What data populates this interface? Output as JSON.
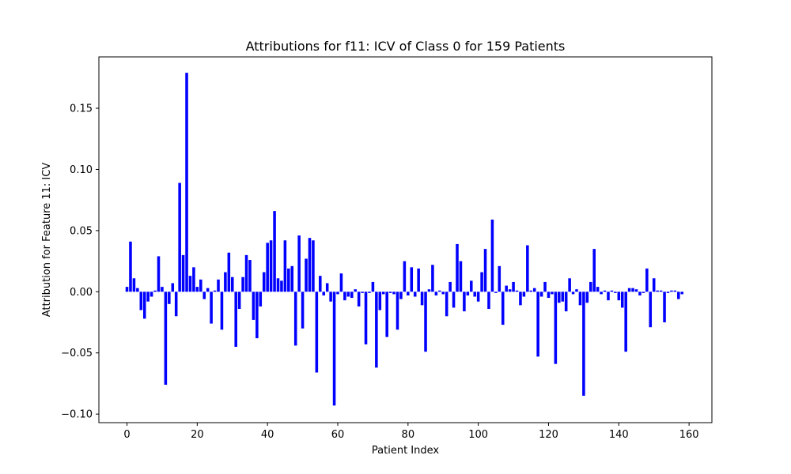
{
  "chart_data": {
    "type": "bar",
    "title": "Attributions for f11: ICV of Class 0 for 159 Patients",
    "xlabel": "Patient Index",
    "ylabel": "Attribution for Feature 11: ICV",
    "xlim": [
      -8,
      166.5
    ],
    "ylim": [
      -0.107,
      0.192
    ],
    "xticks": [
      0,
      20,
      40,
      60,
      80,
      100,
      120,
      140,
      160
    ],
    "xtick_labels": [
      "0",
      "20",
      "40",
      "60",
      "80",
      "100",
      "120",
      "140",
      "160"
    ],
    "yticks": [
      -0.1,
      -0.05,
      0.0,
      0.05,
      0.1,
      0.15
    ],
    "ytick_labels": [
      "−0.10",
      "−0.05",
      "0.00",
      "0.05",
      "0.10",
      "0.15"
    ],
    "grid": false,
    "bar_color": "#0000ff",
    "x": [
      0,
      1,
      2,
      3,
      4,
      5,
      6,
      7,
      8,
      9,
      10,
      11,
      12,
      13,
      14,
      15,
      16,
      17,
      18,
      19,
      20,
      21,
      22,
      23,
      24,
      25,
      26,
      27,
      28,
      29,
      30,
      31,
      32,
      33,
      34,
      35,
      36,
      37,
      38,
      39,
      40,
      41,
      42,
      43,
      44,
      45,
      46,
      47,
      48,
      49,
      50,
      51,
      52,
      53,
      54,
      55,
      56,
      57,
      58,
      59,
      60,
      61,
      62,
      63,
      64,
      65,
      66,
      67,
      68,
      69,
      70,
      71,
      72,
      73,
      74,
      75,
      76,
      77,
      78,
      79,
      80,
      81,
      82,
      83,
      84,
      85,
      86,
      87,
      88,
      89,
      90,
      91,
      92,
      93,
      94,
      95,
      96,
      97,
      98,
      99,
      100,
      101,
      102,
      103,
      104,
      105,
      106,
      107,
      108,
      109,
      110,
      111,
      112,
      113,
      114,
      115,
      116,
      117,
      118,
      119,
      120,
      121,
      122,
      123,
      124,
      125,
      126,
      127,
      128,
      129,
      130,
      131,
      132,
      133,
      134,
      135,
      136,
      137,
      138,
      139,
      140,
      141,
      142,
      143,
      144,
      145,
      146,
      147,
      148,
      149,
      150,
      151,
      152,
      153,
      154,
      155,
      156,
      157,
      158
    ],
    "values": [
      0.004,
      0.041,
      0.011,
      0.003,
      -0.015,
      -0.022,
      -0.008,
      -0.004,
      0.001,
      0.029,
      0.004,
      -0.076,
      -0.01,
      0.007,
      -0.02,
      0.089,
      0.03,
      0.179,
      0.013,
      0.02,
      0.004,
      0.01,
      -0.006,
      0.003,
      -0.026,
      0.001,
      0.01,
      -0.031,
      0.016,
      0.032,
      0.012,
      -0.045,
      -0.014,
      0.012,
      0.03,
      0.026,
      -0.023,
      -0.038,
      -0.012,
      0.016,
      0.04,
      0.042,
      0.066,
      0.011,
      0.009,
      0.042,
      0.019,
      0.021,
      -0.044,
      0.046,
      -0.03,
      0.027,
      0.044,
      0.042,
      -0.066,
      0.013,
      -0.003,
      0.007,
      -0.008,
      -0.093,
      -0.002,
      0.015,
      -0.007,
      -0.004,
      -0.005,
      0.002,
      -0.012,
      -0.001,
      -0.043,
      -0.001,
      0.008,
      -0.062,
      -0.015,
      -0.002,
      -0.037,
      -0.001,
      -0.002,
      -0.031,
      -0.006,
      0.025,
      -0.003,
      0.02,
      -0.004,
      0.019,
      -0.011,
      -0.049,
      0.002,
      0.022,
      -0.003,
      0.001,
      -0.002,
      -0.02,
      0.008,
      -0.013,
      0.039,
      0.025,
      -0.016,
      -0.003,
      0.009,
      -0.004,
      -0.008,
      0.016,
      0.035,
      -0.014,
      0.059,
      -0.001,
      0.021,
      -0.027,
      0.005,
      0.002,
      0.008,
      0.001,
      -0.011,
      -0.004,
      0.038,
      0.001,
      0.003,
      -0.053,
      -0.004,
      0.008,
      -0.005,
      -0.002,
      -0.059,
      -0.009,
      -0.008,
      -0.016,
      0.011,
      -0.002,
      0.002,
      -0.011,
      -0.085,
      -0.009,
      0.008,
      0.035,
      0.004,
      -0.002,
      0.001,
      -0.007,
      0.001,
      -0.001,
      -0.007,
      -0.013,
      -0.049,
      0.003,
      0.003,
      0.002,
      -0.003,
      -0.001,
      0.019,
      -0.029,
      0.011,
      0.001,
      0.001,
      -0.025,
      -0.001,
      0.001,
      0.001,
      -0.006,
      -0.002
    ]
  }
}
